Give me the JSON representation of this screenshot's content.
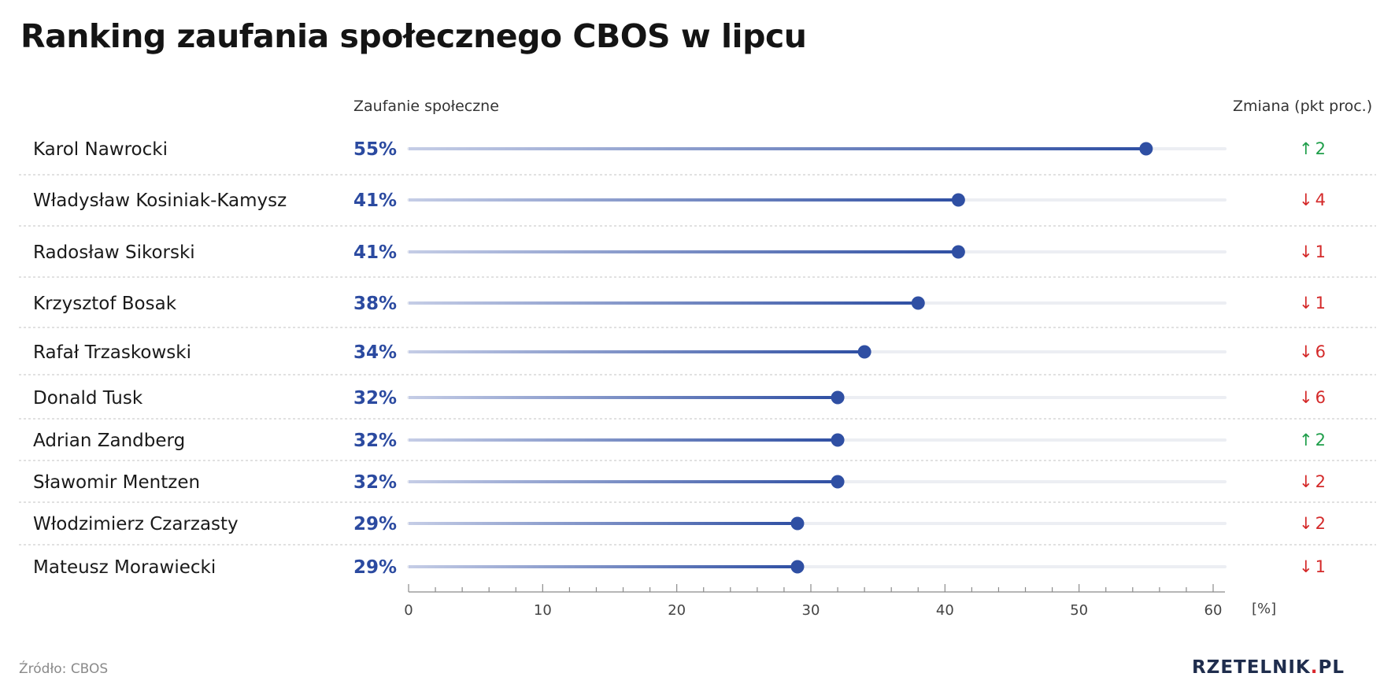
{
  "title": "Ranking zaufania społecznego CBOS w lipcu",
  "columns": {
    "trust": "Zaufanie społeczne",
    "change": "Zmiana (pkt proc.)"
  },
  "source": "Źródło: CBOS",
  "brand": {
    "name": "RZETELNIK",
    "dot": ".",
    "tld": "PL"
  },
  "colors": {
    "accent": "#2f4fa3",
    "value_text": "#2b4aa0",
    "up": "#1f9e4a",
    "down": "#d42a2a",
    "track": "#eceef3"
  },
  "chart_data": {
    "type": "dot",
    "categories": [
      "Karol Nawrocki",
      "Władysław Kosiniak-Kamysz",
      "Radosław Sikorski",
      "Krzysztof Bosak",
      "Rafał Trzaskowski",
      "Donald Tusk",
      "Adrian Zandberg",
      "Sławomir Mentzen",
      "Włodzimierz Czarzasty",
      "Mateusz Morawiecki"
    ],
    "values": [
      55,
      41,
      41,
      38,
      34,
      32,
      32,
      32,
      29,
      29
    ],
    "value_labels": [
      "55%",
      "41%",
      "41%",
      "38%",
      "34%",
      "32%",
      "32%",
      "32%",
      "29%",
      "29%"
    ],
    "changes": [
      {
        "dir": "up",
        "arrow": "↑",
        "value": "2"
      },
      {
        "dir": "down",
        "arrow": "↓",
        "value": "4"
      },
      {
        "dir": "down",
        "arrow": "↓",
        "value": "1"
      },
      {
        "dir": "down",
        "arrow": "↓",
        "value": "1"
      },
      {
        "dir": "down",
        "arrow": "↓",
        "value": "6"
      },
      {
        "dir": "down",
        "arrow": "↓",
        "value": "6"
      },
      {
        "dir": "up",
        "arrow": "↑",
        "value": "2"
      },
      {
        "dir": "down",
        "arrow": "↓",
        "value": "2"
      },
      {
        "dir": "down",
        "arrow": "↓",
        "value": "2"
      },
      {
        "dir": "down",
        "arrow": "↓",
        "value": "1"
      }
    ],
    "xlim": [
      0,
      60
    ],
    "x_ticks": [
      0,
      10,
      20,
      30,
      40,
      50,
      60
    ],
    "x_unit_label": "[%]",
    "grid": false
  }
}
